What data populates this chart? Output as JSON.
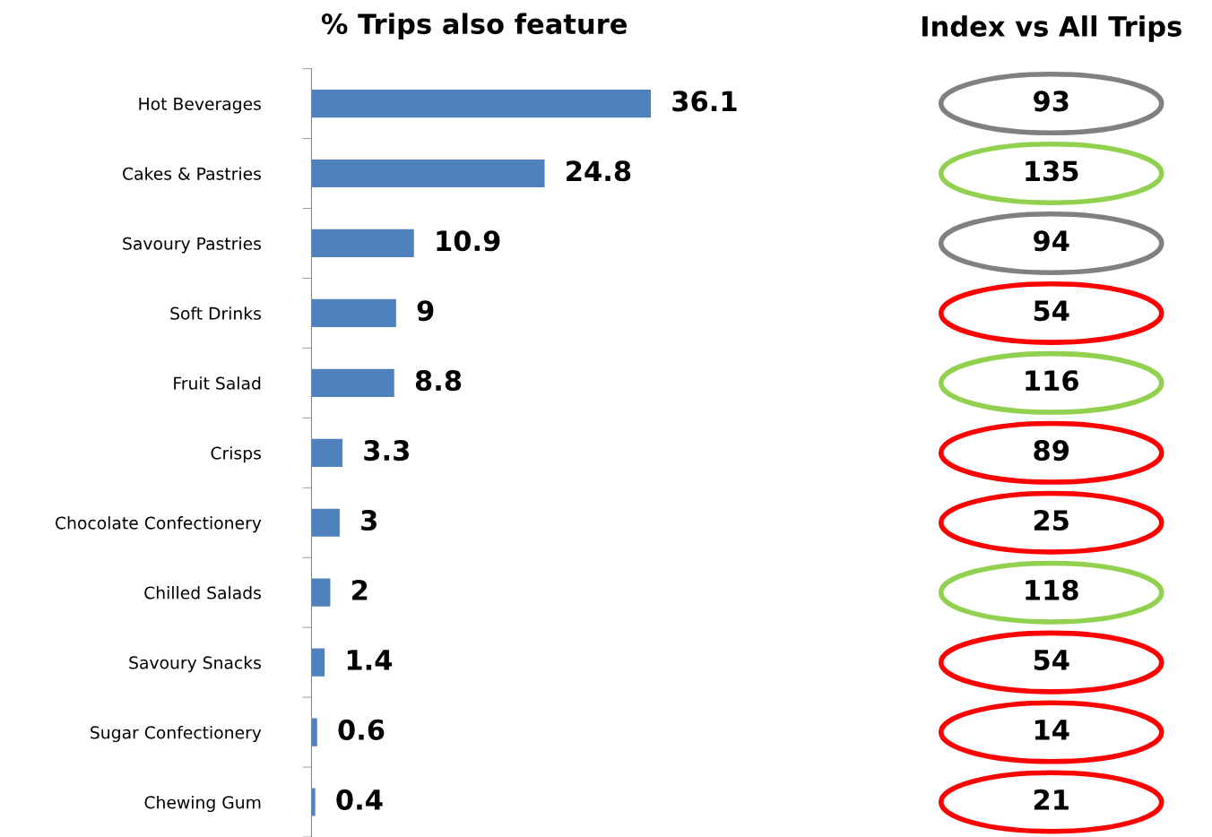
{
  "chart_data": [
    {
      "type": "bar",
      "orientation": "horizontal",
      "title": "% Trips also feature",
      "categories": [
        "Hot Beverages",
        "Cakes & Pastries",
        "Savoury Pastries",
        "Soft Drinks",
        "Fruit Salad",
        "Crisps",
        "Chocolate Confectionery",
        "Chilled Salads",
        "Savoury Snacks",
        "Sugar Confectionery",
        "Chewing Gum"
      ],
      "values": [
        36.1,
        24.8,
        10.9,
        9,
        8.8,
        3.3,
        3,
        2,
        1.4,
        0.6,
        0.4
      ],
      "color": "#4f81bd",
      "data_labels": true,
      "legend": false,
      "grid": false
    },
    {
      "type": "other",
      "title": "Index vs All Trips",
      "categories": [
        null,
        null,
        null,
        null,
        null,
        null,
        null,
        null,
        null,
        null,
        null
      ],
      "data_labels": true,
      "values": [
        93,
        135,
        94,
        54,
        116,
        89,
        25,
        118,
        54,
        14,
        21
      ],
      "colors": [
        "#808080",
        "#92d050",
        "#808080",
        "#ff0000",
        "#92d050",
        "#ff0000",
        "#ff0000",
        "#92d050",
        "#ff0000",
        "#ff0000",
        "#ff0000"
      ]
    }
  ]
}
